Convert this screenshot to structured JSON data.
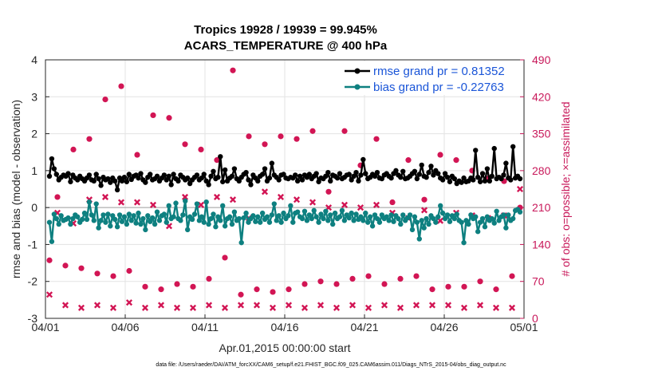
{
  "chart_data": {
    "type": "line",
    "title": "Tropics 19928 / 19939 = 99.945%",
    "subtitle": "ACARS_TEMPERATURE @ 400 hPa",
    "xlabel": "Apr.01,2015 00:00:00 start",
    "ylabel": "rmse and bias (model - observation)",
    "y2label": "# of obs: o=possible; ×=assimilated",
    "footnote": "data file: /Users/raeder/DAI/ATM_forcXX/CAM6_setup/f.e21.FHIST_BGC.f09_025.CAM6assim.011/Diags_NTrS_2015-04/obs_diag_output.nc",
    "xlim": [
      0,
      30
    ],
    "ylim": [
      -3,
      4
    ],
    "y2lim": [
      0,
      490
    ],
    "x_ticks": [
      0,
      5,
      10,
      15,
      20,
      25,
      30
    ],
    "x_tick_labels": [
      "04/01",
      "04/06",
      "04/11",
      "04/16",
      "04/21",
      "04/26",
      "05/01"
    ],
    "y_ticks": [
      -3,
      -2,
      -1,
      0,
      1,
      2,
      3,
      4
    ],
    "y_tick_labels": [
      "-3",
      "-2",
      "-1",
      "0",
      "1",
      "2",
      "3",
      "4"
    ],
    "y2_ticks": [
      0,
      70,
      140,
      210,
      280,
      350,
      420,
      490
    ],
    "y2_tick_labels": [
      "0",
      "70",
      "140",
      "210",
      "280",
      "350",
      "420",
      "490"
    ],
    "grid": true,
    "legend_position": "top-right",
    "colors": {
      "rmse": "#000000",
      "bias": "#0e8080",
      "obs": "#d21554",
      "zero_line": "#b0b0b0",
      "legend_text": "#1a55d8",
      "right_axis": "#c8185a"
    },
    "series": [
      {
        "name": "rmse grand pr = 0.81352",
        "color": "#000000",
        "values": [
          0.85,
          1.32,
          1.05,
          0.9,
          0.75,
          0.82,
          0.88,
          0.85,
          0.92,
          0.7,
          0.88,
          0.8,
          0.75,
          0.85,
          0.78,
          0.72,
          0.8,
          0.88,
          0.75,
          0.72,
          0.9,
          0.78,
          0.6,
          0.82,
          0.75,
          0.78,
          0.68,
          0.8,
          0.72,
          0.48,
          0.8,
          0.72,
          0.82,
          0.7,
          0.9,
          0.76,
          0.85,
          0.88,
          0.8,
          0.92,
          0.75,
          0.68,
          0.82,
          0.9,
          0.75,
          0.78,
          0.85,
          0.72,
          0.8,
          0.88,
          0.75,
          0.85,
          0.62,
          0.9,
          0.78,
          0.72,
          0.88,
          0.82,
          0.75,
          0.8,
          0.65,
          0.75,
          0.82,
          0.88,
          0.75,
          0.8,
          0.9,
          0.72,
          0.62,
          0.85,
          0.98,
          0.78,
          0.82,
          1.38,
          0.7,
          1.02,
          0.72,
          0.8,
          0.85,
          1.05,
          0.78,
          0.72,
          0.82,
          0.9,
          0.95,
          0.75,
          0.62,
          0.88,
          0.8,
          0.72,
          0.85,
          0.9,
          1.05,
          0.72,
          0.8,
          1.2,
          0.88,
          0.82,
          0.75,
          0.88,
          0.9,
          0.8,
          0.78,
          0.82,
          0.8,
          0.88,
          0.72,
          0.85,
          0.75,
          0.88,
          0.82,
          0.9,
          0.78,
          0.85,
          0.92,
          0.7,
          0.8,
          0.78,
          0.85,
          0.95,
          0.72,
          0.88,
          0.85,
          0.8,
          0.92,
          0.78,
          0.82,
          0.88,
          0.9,
          0.75,
          0.85,
          0.95,
          0.72,
          0.88,
          1.3,
          0.92,
          0.78,
          0.82,
          0.9,
          0.85,
          0.95,
          0.8,
          0.78,
          0.88,
          0.92,
          0.85,
          0.8,
          0.92,
          1.0,
          0.88,
          0.82,
          0.98,
          0.78,
          0.8,
          0.85,
          0.92,
          0.98,
          0.78,
          0.9,
          1.15,
          0.85,
          0.82,
          0.95,
          1.12,
          0.88,
          1.0,
          0.92,
          0.8,
          0.75,
          0.92,
          0.82,
          0.7,
          0.85,
          0.78,
          0.65,
          0.72,
          0.68,
          0.8,
          0.7,
          0.72,
          0.8,
          0.75,
          1.55,
          0.82,
          0.7,
          0.92,
          0.72,
          1.05,
          0.72,
          0.85,
          1.6,
          0.78,
          0.82,
          0.78,
          0.88,
          1.2,
          0.8,
          0.75,
          1.65,
          0.8,
          0.85,
          0.78
        ]
      },
      {
        "name": "bias grand pr = -0.22763",
        "color": "#0e8080",
        "values": [
          -0.4,
          -0.92,
          -0.18,
          -0.3,
          -0.45,
          -0.22,
          -0.35,
          -0.32,
          -0.28,
          -0.45,
          -0.3,
          -0.2,
          -0.25,
          -0.4,
          -0.32,
          -0.15,
          -0.32,
          0.15,
          -0.2,
          -0.35,
          0.1,
          -0.55,
          -0.35,
          -0.2,
          -0.4,
          -0.18,
          -0.5,
          -0.22,
          -0.32,
          -0.52,
          -0.2,
          -0.38,
          -0.25,
          -0.45,
          -0.18,
          -0.35,
          -0.22,
          -0.42,
          -0.15,
          -0.45,
          -0.3,
          -0.6,
          -0.22,
          -0.38,
          -0.28,
          -0.45,
          -0.12,
          -0.35,
          -0.22,
          -0.18,
          -0.4,
          0.05,
          -0.3,
          -0.25,
          0.12,
          -0.3,
          -0.35,
          -0.2,
          0.18,
          -0.6,
          -0.25,
          -0.32,
          -0.18,
          0.1,
          -0.35,
          -0.25,
          -0.4,
          0.15,
          -0.45,
          -0.3,
          -0.18,
          -0.52,
          -0.25,
          -0.35,
          0.05,
          -0.5,
          -0.3,
          -0.25,
          -0.45,
          -0.12,
          -0.35,
          -0.3,
          -0.95,
          -0.28,
          -0.15,
          -0.4,
          -0.3,
          -0.22,
          -0.38,
          -0.25,
          -0.4,
          -0.15,
          -0.32,
          -0.25,
          -0.4,
          -0.2,
          0.1,
          -0.35,
          -0.22,
          -0.4,
          -0.15,
          -0.3,
          -0.22,
          0.05,
          -0.4,
          -0.15,
          -0.12,
          -0.25,
          -0.3,
          -0.1,
          -0.35,
          -0.2,
          -0.3,
          -0.08,
          -0.25,
          -0.4,
          -0.18,
          -0.3,
          -0.1,
          -0.35,
          -0.2,
          -0.45,
          -0.15,
          -0.3,
          -0.25,
          -0.08,
          -0.35,
          -0.2,
          -0.28,
          -0.15,
          -0.35,
          -0.18,
          -0.32,
          -0.25,
          -0.35,
          -0.15,
          -0.4,
          -0.25,
          -0.5,
          -0.2,
          -0.3,
          -0.4,
          -0.2,
          -0.3,
          -0.25,
          -0.35,
          -0.2,
          -0.38,
          -0.22,
          -0.3,
          -0.45,
          -0.2,
          -0.35,
          -0.28,
          -0.2,
          -0.6,
          -0.25,
          -0.4,
          -0.85,
          -0.35,
          -0.55,
          -0.3,
          -0.45,
          -0.22,
          -0.3,
          -0.4,
          -0.25,
          0.05,
          -0.15,
          -0.3,
          -0.2,
          -0.38,
          -0.22,
          -0.3,
          -0.18,
          -0.35,
          -0.4,
          -0.95,
          -0.35,
          -0.45,
          -0.2,
          -0.3,
          -0.25,
          -0.65,
          -0.4,
          -0.3,
          -0.52,
          -0.25,
          -0.35,
          -0.3,
          -0.42,
          -0.1,
          -0.35,
          -0.25,
          -0.2,
          -0.55,
          -0.2,
          -0.35,
          -0.3,
          -0.08,
          -0.05,
          -0.12
        ]
      }
    ],
    "obs_possible": {
      "name": "# obs possible",
      "x": [
        0.25,
        0.75,
        1.25,
        1.75,
        2.25,
        2.75,
        3.25,
        3.75,
        4.25,
        4.75,
        5.25,
        5.75,
        6.25,
        6.75,
        7.25,
        7.75,
        8.25,
        8.75,
        9.25,
        9.75,
        10.25,
        10.75,
        11.25,
        11.75,
        12.25,
        12.75,
        13.25,
        13.75,
        14.25,
        14.75,
        15.25,
        15.75,
        16.25,
        16.75,
        17.25,
        17.75,
        18.25,
        18.75,
        19.25,
        19.75,
        20.25,
        20.75,
        21.25,
        21.75,
        22.25,
        22.75,
        23.25,
        23.75,
        24.25,
        24.75,
        25.25,
        25.75,
        26.25,
        26.75,
        27.25,
        27.75,
        28.25,
        28.75,
        29.25,
        29.75
      ],
      "y": [
        110,
        230,
        100,
        320,
        95,
        340,
        85,
        415,
        80,
        440,
        90,
        310,
        60,
        385,
        55,
        380,
        65,
        330,
        60,
        320,
        75,
        300,
        115,
        470,
        45,
        345,
        55,
        330,
        50,
        345,
        55,
        340,
        65,
        355,
        70,
        240,
        65,
        355,
        75,
        290,
        80,
        340,
        65,
        220,
        75,
        300,
        80,
        225,
        55,
        310,
        60,
        300,
        60,
        280,
        70,
        265,
        55,
        260,
        80,
        210
      ]
    },
    "obs_assimilated": {
      "name": "# obs assimilated",
      "x": [
        0.25,
        0.75,
        1.25,
        1.75,
        2.25,
        2.75,
        3.25,
        3.75,
        4.25,
        4.75,
        5.25,
        5.75,
        6.25,
        6.75,
        7.25,
        7.75,
        8.25,
        8.75,
        9.25,
        9.75,
        10.25,
        10.75,
        11.25,
        11.75,
        12.25,
        12.75,
        13.25,
        13.75,
        14.25,
        14.75,
        15.25,
        15.75,
        16.25,
        16.75,
        17.25,
        17.75,
        18.25,
        18.75,
        19.25,
        19.75,
        20.25,
        20.75,
        21.25,
        21.75,
        22.25,
        22.75,
        23.25,
        23.75,
        24.25,
        24.75,
        25.25,
        25.75,
        26.25,
        26.75,
        27.25,
        27.75,
        28.25,
        28.75,
        29.25,
        29.75
      ],
      "y": [
        45,
        200,
        25,
        180,
        20,
        225,
        25,
        230,
        20,
        220,
        30,
        220,
        20,
        215,
        25,
        175,
        20,
        230,
        20,
        215,
        25,
        230,
        20,
        225,
        25,
        190,
        25,
        240,
        20,
        230,
        25,
        225,
        20,
        220,
        25,
        210,
        20,
        215,
        25,
        210,
        20,
        215,
        25,
        200,
        20,
        190,
        25,
        205,
        25,
        185,
        25,
        200,
        20,
        195,
        25,
        190,
        20,
        195,
        20,
        245
      ]
    }
  }
}
